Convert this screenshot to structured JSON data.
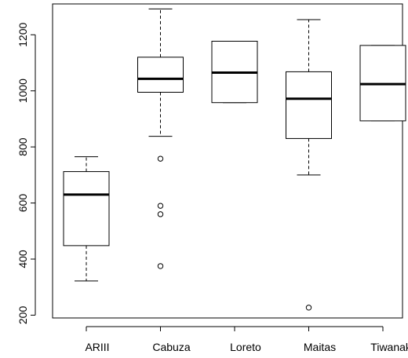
{
  "chart_data": {
    "type": "boxplot",
    "title": "",
    "xlabel": "",
    "ylabel": "",
    "categories": [
      "ARIII",
      "Cabuza",
      "Loreto",
      "Maitas",
      "Tiwanaku"
    ],
    "ylim": [
      190,
      1310
    ],
    "yticks": [
      200,
      400,
      600,
      800,
      1000,
      1200
    ],
    "grid": false,
    "boxes": [
      {
        "name": "ARIII",
        "whisker_low": 322,
        "q1": 448,
        "median": 630,
        "q3": 712,
        "whisker_high": 765,
        "outliers": []
      },
      {
        "name": "Cabuza",
        "whisker_low": 838,
        "q1": 995,
        "median": 1043,
        "q3": 1120,
        "whisker_high": 1292,
        "outliers": [
          758,
          590,
          560,
          375
        ]
      },
      {
        "name": "Loreto",
        "whisker_low": 958,
        "q1": 958,
        "median": 1065,
        "q3": 1177,
        "whisker_high": 1177,
        "outliers": []
      },
      {
        "name": "Maitas",
        "whisker_low": 700,
        "q1": 830,
        "median": 972,
        "q3": 1068,
        "whisker_high": 1254,
        "outliers": [
          227
        ]
      },
      {
        "name": "Tiwanaku",
        "whisker_low": 893,
        "q1": 893,
        "median": 1024,
        "q3": 1162,
        "whisker_high": 1162,
        "outliers": []
      }
    ]
  }
}
